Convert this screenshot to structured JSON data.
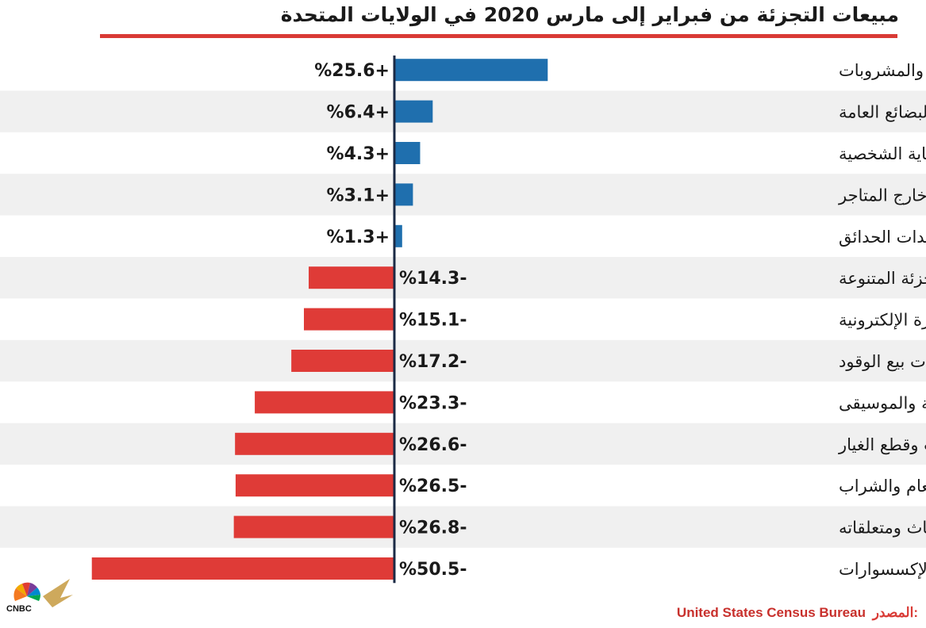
{
  "title": "مبيعات التجزئة من فبراير إلى مارس 2020 في الولايات المتحدة",
  "source": {
    "label": "المصدر:",
    "value": "United States Census Bureau"
  },
  "logo": {
    "text": "CNBC"
  },
  "colors": {
    "positive": "#1f6fae",
    "negative": "#df3b37",
    "accent": "#d93a35",
    "stripe": "#f0f0f0",
    "axis": "#1b2a45"
  },
  "chart_data": {
    "type": "bar",
    "orientation": "horizontal",
    "title": "مبيعات التجزئة من فبراير إلى مارس 2020 في الولايات المتحدة",
    "categories": [
      "الأطعمة والمشروبات",
      "البضائع العامة",
      "الصحة والعناية الشخصية",
      "تجارة التجزئة خارج المتاجر",
      "مواد البناء ومعدات الحدائق",
      "متاجر التجزئة المتنوعة",
      "الأجهزة الإلكترونية",
      "محطات بيع الوقود",
      "بضائع المتعلقات الرياضية والموسيقى",
      "السيارات وقطع الغيار",
      "أماكن تقديم الطعام والشراب",
      "بيع الأثاث ومتعلقاته",
      "محلات الألبسة والإكسسوارات"
    ],
    "values": [
      25.6,
      6.4,
      4.3,
      3.1,
      1.3,
      -14.3,
      -15.1,
      -17.2,
      -23.3,
      -26.6,
      -26.5,
      -26.8,
      -50.5
    ],
    "value_labels": [
      "%25.6+",
      "%6.4+",
      "%4.3+",
      "%3.1+",
      "%1.3+",
      "%14.3-",
      "%15.1-",
      "%17.2-",
      "%23.3-",
      "%26.6-",
      "%26.5-",
      "%26.8-",
      "%50.5-"
    ],
    "units": "%",
    "grid": false,
    "legend": "none"
  }
}
